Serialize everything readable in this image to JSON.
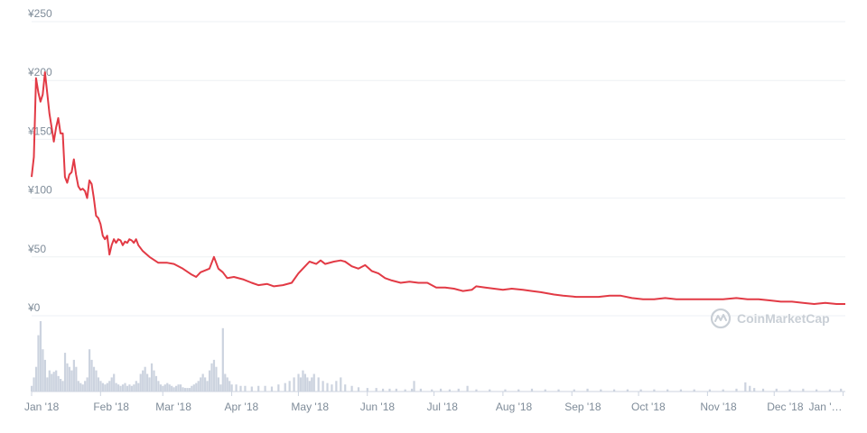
{
  "chart_data": {
    "type": "line",
    "currency": "¥",
    "y_ticks": [
      "¥0",
      "¥50",
      "¥100",
      "¥150",
      "¥200",
      "¥250"
    ],
    "y_tick_values": [
      0,
      50,
      100,
      150,
      200,
      250
    ],
    "ylim": [
      0,
      250
    ],
    "x_ticks": [
      "Jan '18",
      "Feb '18",
      "Mar '18",
      "Apr '18",
      "May '18",
      "Jun '18",
      "Jul '18",
      "Aug '18",
      "Sep '18",
      "Oct '18",
      "Nov '18",
      "Dec '18",
      "Jan '…"
    ],
    "x_tick_dates": [
      "2018-01-01",
      "2018-02-01",
      "2018-03-01",
      "2018-04-01",
      "2018-05-01",
      "2018-06-01",
      "2018-07-01",
      "2018-08-01",
      "2018-09-01",
      "2018-10-01",
      "2018-11-01",
      "2018-12-01",
      "2019-01-01"
    ],
    "xlim": [
      "2018-01-01",
      "2019-01-02"
    ],
    "grid": true,
    "price_series": [
      [
        "2018-01-01",
        118
      ],
      [
        "2018-01-02",
        135
      ],
      [
        "2018-01-03",
        202
      ],
      [
        "2018-01-04",
        190
      ],
      [
        "2018-01-05",
        182
      ],
      [
        "2018-01-06",
        188
      ],
      [
        "2018-01-07",
        207
      ],
      [
        "2018-01-08",
        190
      ],
      [
        "2018-01-09",
        172
      ],
      [
        "2018-01-10",
        160
      ],
      [
        "2018-01-11",
        148
      ],
      [
        "2018-01-12",
        160
      ],
      [
        "2018-01-13",
        168
      ],
      [
        "2018-01-14",
        155
      ],
      [
        "2018-01-15",
        155
      ],
      [
        "2018-01-16",
        118
      ],
      [
        "2018-01-17",
        113
      ],
      [
        "2018-01-18",
        120
      ],
      [
        "2018-01-19",
        122
      ],
      [
        "2018-01-20",
        133
      ],
      [
        "2018-01-21",
        120
      ],
      [
        "2018-01-22",
        110
      ],
      [
        "2018-01-23",
        107
      ],
      [
        "2018-01-24",
        108
      ],
      [
        "2018-01-25",
        106
      ],
      [
        "2018-01-26",
        100
      ],
      [
        "2018-01-27",
        115
      ],
      [
        "2018-01-28",
        112
      ],
      [
        "2018-01-29",
        100
      ],
      [
        "2018-01-30",
        85
      ],
      [
        "2018-01-31",
        83
      ],
      [
        "2018-02-01",
        78
      ],
      [
        "2018-02-02",
        68
      ],
      [
        "2018-02-03",
        65
      ],
      [
        "2018-02-04",
        68
      ],
      [
        "2018-02-05",
        52
      ],
      [
        "2018-02-06",
        60
      ],
      [
        "2018-02-07",
        65
      ],
      [
        "2018-02-08",
        62
      ],
      [
        "2018-02-09",
        65
      ],
      [
        "2018-02-10",
        64
      ],
      [
        "2018-02-11",
        60
      ],
      [
        "2018-02-12",
        63
      ],
      [
        "2018-02-13",
        62
      ],
      [
        "2018-02-14",
        65
      ],
      [
        "2018-02-15",
        64
      ],
      [
        "2018-02-16",
        62
      ],
      [
        "2018-02-17",
        65
      ],
      [
        "2018-02-18",
        60
      ],
      [
        "2018-02-20",
        55
      ],
      [
        "2018-02-23",
        50
      ],
      [
        "2018-02-27",
        45
      ],
      [
        "2018-03-03",
        45
      ],
      [
        "2018-03-06",
        44
      ],
      [
        "2018-03-10",
        40
      ],
      [
        "2018-03-14",
        35
      ],
      [
        "2018-03-16",
        33
      ],
      [
        "2018-03-18",
        37
      ],
      [
        "2018-03-22",
        40
      ],
      [
        "2018-03-24",
        50
      ],
      [
        "2018-03-26",
        40
      ],
      [
        "2018-03-28",
        37
      ],
      [
        "2018-03-30",
        32
      ],
      [
        "2018-04-02",
        33
      ],
      [
        "2018-04-06",
        31
      ],
      [
        "2018-04-10",
        28
      ],
      [
        "2018-04-13",
        26
      ],
      [
        "2018-04-17",
        27
      ],
      [
        "2018-04-20",
        25
      ],
      [
        "2018-04-24",
        26
      ],
      [
        "2018-04-28",
        28
      ],
      [
        "2018-05-01",
        36
      ],
      [
        "2018-05-04",
        42
      ],
      [
        "2018-05-06",
        46
      ],
      [
        "2018-05-09",
        44
      ],
      [
        "2018-05-11",
        47
      ],
      [
        "2018-05-13",
        44
      ],
      [
        "2018-05-17",
        46
      ],
      [
        "2018-05-20",
        47
      ],
      [
        "2018-05-22",
        46
      ],
      [
        "2018-05-25",
        42
      ],
      [
        "2018-05-28",
        40
      ],
      [
        "2018-05-31",
        43
      ],
      [
        "2018-06-03",
        38
      ],
      [
        "2018-06-06",
        36
      ],
      [
        "2018-06-09",
        32
      ],
      [
        "2018-06-12",
        30
      ],
      [
        "2018-06-16",
        28
      ],
      [
        "2018-06-20",
        29
      ],
      [
        "2018-06-24",
        28
      ],
      [
        "2018-06-28",
        28
      ],
      [
        "2018-07-02",
        24
      ],
      [
        "2018-07-06",
        24
      ],
      [
        "2018-07-10",
        23
      ],
      [
        "2018-07-14",
        21
      ],
      [
        "2018-07-18",
        22
      ],
      [
        "2018-07-20",
        25
      ],
      [
        "2018-07-24",
        24
      ],
      [
        "2018-07-28",
        23
      ],
      [
        "2018-08-01",
        22
      ],
      [
        "2018-08-05",
        23
      ],
      [
        "2018-08-10",
        22
      ],
      [
        "2018-08-14",
        21
      ],
      [
        "2018-08-18",
        20
      ],
      [
        "2018-08-24",
        18
      ],
      [
        "2018-08-28",
        17
      ],
      [
        "2018-09-03",
        16
      ],
      [
        "2018-09-08",
        16
      ],
      [
        "2018-09-13",
        16
      ],
      [
        "2018-09-18",
        17
      ],
      [
        "2018-09-23",
        17
      ],
      [
        "2018-09-28",
        15
      ],
      [
        "2018-10-03",
        14
      ],
      [
        "2018-10-08",
        14
      ],
      [
        "2018-10-13",
        15
      ],
      [
        "2018-10-18",
        14
      ],
      [
        "2018-10-23",
        14
      ],
      [
        "2018-10-28",
        14
      ],
      [
        "2018-11-02",
        14
      ],
      [
        "2018-11-08",
        14
      ],
      [
        "2018-11-14",
        15
      ],
      [
        "2018-11-19",
        14
      ],
      [
        "2018-11-24",
        14
      ],
      [
        "2018-11-29",
        13
      ],
      [
        "2018-12-04",
        12
      ],
      [
        "2018-12-09",
        12
      ],
      [
        "2018-12-14",
        11
      ],
      [
        "2018-12-19",
        10
      ],
      [
        "2018-12-24",
        11
      ],
      [
        "2018-12-29",
        10
      ],
      [
        "2019-01-02",
        10
      ]
    ],
    "volume_series": [
      [
        "2018-01-01",
        0.08
      ],
      [
        "2018-01-02",
        0.2
      ],
      [
        "2018-01-03",
        0.35
      ],
      [
        "2018-01-04",
        0.8
      ],
      [
        "2018-01-05",
        1.0
      ],
      [
        "2018-01-06",
        0.6
      ],
      [
        "2018-01-07",
        0.45
      ],
      [
        "2018-01-08",
        0.2
      ],
      [
        "2018-01-09",
        0.3
      ],
      [
        "2018-01-10",
        0.25
      ],
      [
        "2018-01-11",
        0.28
      ],
      [
        "2018-01-12",
        0.3
      ],
      [
        "2018-01-13",
        0.22
      ],
      [
        "2018-01-14",
        0.18
      ],
      [
        "2018-01-15",
        0.15
      ],
      [
        "2018-01-16",
        0.55
      ],
      [
        "2018-01-17",
        0.4
      ],
      [
        "2018-01-18",
        0.35
      ],
      [
        "2018-01-19",
        0.3
      ],
      [
        "2018-01-20",
        0.45
      ],
      [
        "2018-01-21",
        0.35
      ],
      [
        "2018-01-22",
        0.15
      ],
      [
        "2018-01-23",
        0.12
      ],
      [
        "2018-01-24",
        0.1
      ],
      [
        "2018-01-25",
        0.15
      ],
      [
        "2018-01-26",
        0.2
      ],
      [
        "2018-01-27",
        0.6
      ],
      [
        "2018-01-28",
        0.45
      ],
      [
        "2018-01-29",
        0.35
      ],
      [
        "2018-01-30",
        0.3
      ],
      [
        "2018-01-31",
        0.2
      ],
      [
        "2018-02-01",
        0.15
      ],
      [
        "2018-02-02",
        0.12
      ],
      [
        "2018-02-03",
        0.1
      ],
      [
        "2018-02-04",
        0.12
      ],
      [
        "2018-02-05",
        0.15
      ],
      [
        "2018-02-06",
        0.2
      ],
      [
        "2018-02-07",
        0.25
      ],
      [
        "2018-02-08",
        0.12
      ],
      [
        "2018-02-09",
        0.1
      ],
      [
        "2018-02-10",
        0.08
      ],
      [
        "2018-02-11",
        0.1
      ],
      [
        "2018-02-12",
        0.12
      ],
      [
        "2018-02-13",
        0.08
      ],
      [
        "2018-02-14",
        0.1
      ],
      [
        "2018-02-15",
        0.08
      ],
      [
        "2018-02-16",
        0.1
      ],
      [
        "2018-02-17",
        0.15
      ],
      [
        "2018-02-18",
        0.12
      ],
      [
        "2018-02-19",
        0.25
      ],
      [
        "2018-02-20",
        0.3
      ],
      [
        "2018-02-21",
        0.35
      ],
      [
        "2018-02-22",
        0.25
      ],
      [
        "2018-02-23",
        0.2
      ],
      [
        "2018-02-24",
        0.4
      ],
      [
        "2018-02-25",
        0.3
      ],
      [
        "2018-02-26",
        0.22
      ],
      [
        "2018-02-27",
        0.15
      ],
      [
        "2018-02-28",
        0.1
      ],
      [
        "2018-03-01",
        0.08
      ],
      [
        "2018-03-02",
        0.1
      ],
      [
        "2018-03-03",
        0.12
      ],
      [
        "2018-03-04",
        0.1
      ],
      [
        "2018-03-05",
        0.08
      ],
      [
        "2018-03-06",
        0.06
      ],
      [
        "2018-03-07",
        0.08
      ],
      [
        "2018-03-08",
        0.1
      ],
      [
        "2018-03-09",
        0.1
      ],
      [
        "2018-03-10",
        0.06
      ],
      [
        "2018-03-11",
        0.05
      ],
      [
        "2018-03-12",
        0.05
      ],
      [
        "2018-03-13",
        0.05
      ],
      [
        "2018-03-14",
        0.08
      ],
      [
        "2018-03-15",
        0.1
      ],
      [
        "2018-03-16",
        0.12
      ],
      [
        "2018-03-17",
        0.15
      ],
      [
        "2018-03-18",
        0.2
      ],
      [
        "2018-03-19",
        0.25
      ],
      [
        "2018-03-20",
        0.2
      ],
      [
        "2018-03-21",
        0.15
      ],
      [
        "2018-03-22",
        0.3
      ],
      [
        "2018-03-23",
        0.4
      ],
      [
        "2018-03-24",
        0.45
      ],
      [
        "2018-03-25",
        0.35
      ],
      [
        "2018-03-26",
        0.2
      ],
      [
        "2018-03-27",
        0.1
      ],
      [
        "2018-03-28",
        0.9
      ],
      [
        "2018-03-29",
        0.25
      ],
      [
        "2018-03-30",
        0.2
      ],
      [
        "2018-03-31",
        0.15
      ],
      [
        "2018-04-01",
        0.1
      ],
      [
        "2018-04-03",
        0.1
      ],
      [
        "2018-04-05",
        0.08
      ],
      [
        "2018-04-07",
        0.08
      ],
      [
        "2018-04-10",
        0.07
      ],
      [
        "2018-04-13",
        0.08
      ],
      [
        "2018-04-16",
        0.08
      ],
      [
        "2018-04-19",
        0.07
      ],
      [
        "2018-04-22",
        0.1
      ],
      [
        "2018-04-25",
        0.12
      ],
      [
        "2018-04-27",
        0.15
      ],
      [
        "2018-04-29",
        0.2
      ],
      [
        "2018-05-01",
        0.25
      ],
      [
        "2018-05-02",
        0.2
      ],
      [
        "2018-05-03",
        0.3
      ],
      [
        "2018-05-04",
        0.25
      ],
      [
        "2018-05-05",
        0.2
      ],
      [
        "2018-05-06",
        0.15
      ],
      [
        "2018-05-07",
        0.2
      ],
      [
        "2018-05-08",
        0.25
      ],
      [
        "2018-05-10",
        0.2
      ],
      [
        "2018-05-12",
        0.15
      ],
      [
        "2018-05-14",
        0.12
      ],
      [
        "2018-05-16",
        0.1
      ],
      [
        "2018-05-18",
        0.15
      ],
      [
        "2018-05-20",
        0.2
      ],
      [
        "2018-05-22",
        0.1
      ],
      [
        "2018-05-25",
        0.08
      ],
      [
        "2018-05-28",
        0.06
      ],
      [
        "2018-06-01",
        0.05
      ],
      [
        "2018-06-05",
        0.05
      ],
      [
        "2018-06-08",
        0.04
      ],
      [
        "2018-06-11",
        0.04
      ],
      [
        "2018-06-14",
        0.04
      ],
      [
        "2018-06-18",
        0.03
      ],
      [
        "2018-06-21",
        0.04
      ],
      [
        "2018-06-22",
        0.15
      ],
      [
        "2018-06-25",
        0.04
      ],
      [
        "2018-06-30",
        0.03
      ],
      [
        "2018-07-04",
        0.04
      ],
      [
        "2018-07-08",
        0.03
      ],
      [
        "2018-07-12",
        0.04
      ],
      [
        "2018-07-16",
        0.08
      ],
      [
        "2018-07-20",
        0.03
      ],
      [
        "2018-07-26",
        0.03
      ],
      [
        "2018-08-02",
        0.03
      ],
      [
        "2018-08-08",
        0.03
      ],
      [
        "2018-08-14",
        0.04
      ],
      [
        "2018-08-20",
        0.03
      ],
      [
        "2018-08-26",
        0.03
      ],
      [
        "2018-09-02",
        0.03
      ],
      [
        "2018-09-08",
        0.04
      ],
      [
        "2018-09-14",
        0.03
      ],
      [
        "2018-09-20",
        0.03
      ],
      [
        "2018-09-26",
        0.03
      ],
      [
        "2018-10-02",
        0.03
      ],
      [
        "2018-10-08",
        0.03
      ],
      [
        "2018-10-14",
        0.03
      ],
      [
        "2018-10-20",
        0.03
      ],
      [
        "2018-10-26",
        0.03
      ],
      [
        "2018-11-02",
        0.03
      ],
      [
        "2018-11-08",
        0.03
      ],
      [
        "2018-11-14",
        0.04
      ],
      [
        "2018-11-18",
        0.13
      ],
      [
        "2018-11-20",
        0.08
      ],
      [
        "2018-11-22",
        0.05
      ],
      [
        "2018-11-26",
        0.04
      ],
      [
        "2018-12-02",
        0.04
      ],
      [
        "2018-12-08",
        0.03
      ],
      [
        "2018-12-14",
        0.04
      ],
      [
        "2018-12-20",
        0.03
      ],
      [
        "2018-12-26",
        0.03
      ],
      [
        "2018-12-31",
        0.04
      ]
    ]
  },
  "watermark": {
    "text": "CoinMarketCap",
    "color": "#c9cfd6"
  },
  "colors": {
    "price_line": "#e23a45",
    "volume_bars": "#ccd3df",
    "grid": "#eef1f4",
    "axis_text": "#7f8c99"
  }
}
